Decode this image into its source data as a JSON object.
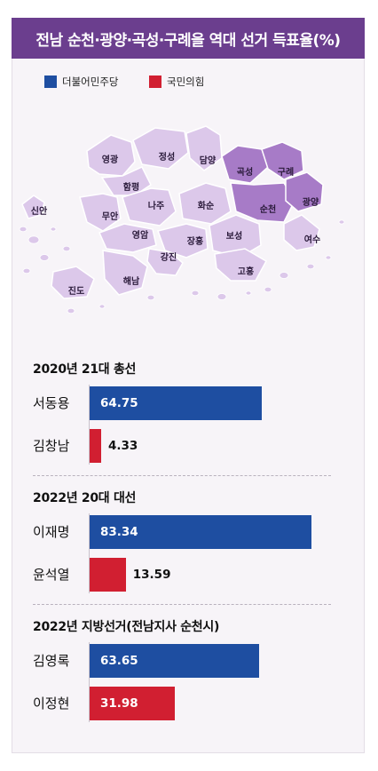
{
  "title": "전남 순천·광양·곡성·구례을 역대 선거 득표율(%)",
  "legend": [
    {
      "name": "더불어민주당",
      "color": "#1e4ea1"
    },
    {
      "name": "국민의힘",
      "color": "#d11f31"
    }
  ],
  "map": {
    "highlight_color": "#a77bc7",
    "base_color": "#dcc8ea",
    "regions": [
      {
        "name": "영광",
        "highlight": false
      },
      {
        "name": "정성",
        "highlight": false
      },
      {
        "name": "담양",
        "highlight": false
      },
      {
        "name": "곡성",
        "highlight": true
      },
      {
        "name": "구례",
        "highlight": true
      },
      {
        "name": "함평",
        "highlight": false
      },
      {
        "name": "신안",
        "highlight": false
      },
      {
        "name": "무안",
        "highlight": false
      },
      {
        "name": "나주",
        "highlight": false
      },
      {
        "name": "화순",
        "highlight": false
      },
      {
        "name": "순천",
        "highlight": true
      },
      {
        "name": "광양",
        "highlight": true
      },
      {
        "name": "영암",
        "highlight": false
      },
      {
        "name": "장흥",
        "highlight": false
      },
      {
        "name": "보성",
        "highlight": false
      },
      {
        "name": "여수",
        "highlight": false
      },
      {
        "name": "강진",
        "highlight": false
      },
      {
        "name": "고흥",
        "highlight": false
      },
      {
        "name": "해남",
        "highlight": false
      },
      {
        "name": "진도",
        "highlight": false
      }
    ]
  },
  "chart_data": {
    "type": "bar",
    "xlim": [
      0,
      100
    ],
    "groups": [
      {
        "title": "2020년 21대 총선",
        "bars": [
          {
            "name": "서동용",
            "value": 64.75,
            "party": "더불어민주당",
            "color": "#1e4ea1"
          },
          {
            "name": "김창남",
            "value": 4.33,
            "party": "국민의힘",
            "color": "#d11f31"
          }
        ]
      },
      {
        "title": "2022년 20대 대선",
        "bars": [
          {
            "name": "이재명",
            "value": 83.34,
            "party": "더불어민주당",
            "color": "#1e4ea1"
          },
          {
            "name": "윤석열",
            "value": 13.59,
            "party": "국민의힘",
            "color": "#d11f31"
          }
        ]
      },
      {
        "title": "2022년 지방선거(전남지사 순천시)",
        "bars": [
          {
            "name": "김영록",
            "value": 63.65,
            "party": "더불어민주당",
            "color": "#1e4ea1"
          },
          {
            "name": "이정현",
            "value": 31.98,
            "party": "국민의힘",
            "color": "#d11f31"
          }
        ]
      }
    ]
  }
}
